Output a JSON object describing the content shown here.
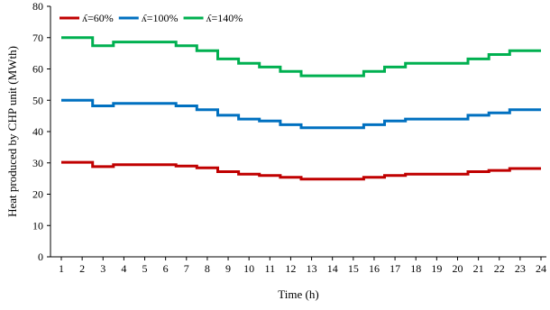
{
  "chart_data": {
    "type": "line",
    "step": true,
    "xlabel": "Time (h)",
    "ylabel": "Heat produced by CHP unit (MWth)",
    "x": [
      1,
      2,
      3,
      4,
      5,
      6,
      7,
      8,
      9,
      10,
      11,
      12,
      13,
      14,
      15,
      16,
      17,
      18,
      19,
      20,
      21,
      22,
      23,
      24
    ],
    "xlim": [
      1,
      24
    ],
    "ylim": [
      0,
      80
    ],
    "yticks": [
      0,
      10,
      20,
      30,
      40,
      50,
      60,
      70,
      80
    ],
    "grid": false,
    "legend_position": "top-left",
    "series": [
      {
        "name": "ʎ=60%",
        "color": "#C00000",
        "values": [
          30.2,
          30.2,
          28.8,
          29.4,
          29.4,
          29.4,
          29.0,
          28.4,
          27.2,
          26.4,
          26.0,
          25.4,
          24.8,
          24.8,
          24.8,
          25.4,
          26.0,
          26.4,
          26.4,
          26.4,
          27.2,
          27.6,
          28.2,
          28.2
        ]
      },
      {
        "name": "ʎ=100%",
        "color": "#0070C0",
        "values": [
          50.0,
          50.0,
          48.2,
          49.0,
          49.0,
          49.0,
          48.2,
          47.0,
          45.2,
          44.0,
          43.4,
          42.2,
          41.2,
          41.2,
          41.2,
          42.2,
          43.4,
          44.0,
          44.0,
          44.0,
          45.2,
          46.0,
          47.0,
          47.0
        ]
      },
      {
        "name": "ʎ=140%",
        "color": "#00B050",
        "values": [
          70.0,
          70.0,
          67.4,
          68.6,
          68.6,
          68.6,
          67.4,
          65.8,
          63.2,
          61.8,
          60.6,
          59.2,
          57.8,
          57.8,
          57.8,
          59.2,
          60.6,
          61.8,
          61.8,
          61.8,
          63.2,
          64.6,
          65.8,
          65.8
        ]
      }
    ]
  }
}
